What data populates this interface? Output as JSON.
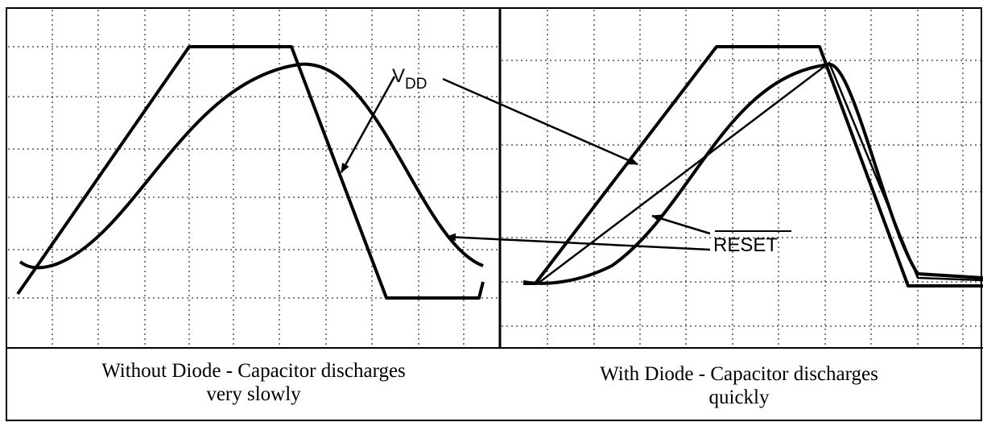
{
  "labels": {
    "vdd": {
      "main": "V",
      "sub": "DD"
    },
    "reset": "RESET"
  },
  "captions": [
    {
      "line1": "Without Diode - Capacitor discharges",
      "line2": "very slowly"
    },
    {
      "line1": "With Diode - Capacitor discharges",
      "line2": "quickly"
    }
  ]
}
